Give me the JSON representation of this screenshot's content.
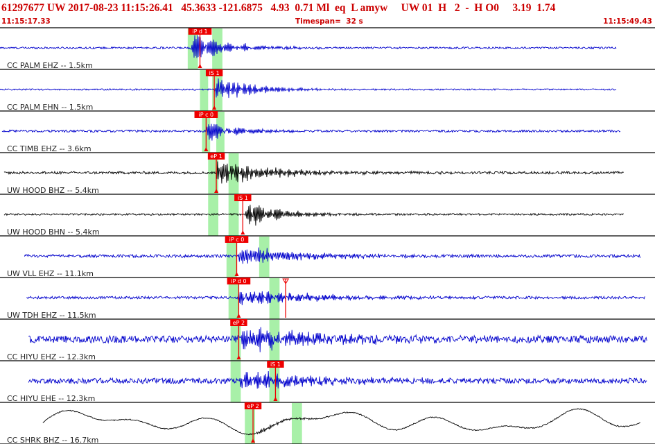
{
  "header": {
    "title": "61297677 UW 2017-08-23 11:15:26.41   45.3633 -121.6875   4.93  0.71 Ml  eq  L amyw     UW 01  H   2  -  H O0     3.19  1.74",
    "start_time": "11:15:17.33",
    "timespan": "Timespan=  32 s",
    "end_time": "11:15:49.43"
  },
  "colors": {
    "blue_trace": "#0000cc",
    "black_trace": "#000000",
    "pick_red": "#ee0000",
    "window_green": "#a8f0a8",
    "divider": "#000000"
  },
  "chart_data": {
    "type": "seismogram",
    "time_range_s": [
      0,
      32.1
    ],
    "traces": [
      {
        "label": "CC PALM EHZ -- 1.5km",
        "color": "blue",
        "onset_s": 9.3,
        "trace_start_s": 0,
        "trace_end_s": 30.2,
        "amplitude": 0.9,
        "decay": 0.18,
        "noise": 0.05,
        "freq": 3.2,
        "windows": [
          [
            9.2,
            9.7
          ],
          [
            10.4,
            10.9
          ]
        ],
        "picks": [
          {
            "label": "iP d 1",
            "t": 9.8
          }
        ]
      },
      {
        "label": "CC PALM EHN -- 1.5km",
        "color": "blue",
        "onset_s": 10.5,
        "trace_start_s": 0,
        "trace_end_s": 30.2,
        "amplitude": 0.9,
        "decay": 0.2,
        "noise": 0.04,
        "freq": 3.5,
        "windows": [
          [
            9.8,
            10.2
          ],
          [
            10.4,
            10.9
          ]
        ],
        "picks": [
          {
            "label": "iS 1",
            "t": 10.5
          }
        ]
      },
      {
        "label": "CC TIMB EHZ -- 3.6km",
        "color": "blue",
        "onset_s": 10.0,
        "trace_start_s": 0.1,
        "trace_end_s": 30.4,
        "amplitude": 0.65,
        "decay": 0.2,
        "noise": 0.06,
        "freq": 3.0,
        "windows": [
          [
            9.9,
            10.3
          ],
          [
            10.6,
            11.0
          ]
        ],
        "picks": [
          {
            "label": "iP c 0",
            "t": 10.1
          }
        ]
      },
      {
        "label": "UW HOOD BHZ -- 5.4km",
        "color": "black",
        "onset_s": 10.5,
        "trace_start_s": 0.2,
        "trace_end_s": 30.6,
        "amplitude": 0.75,
        "decay": 0.12,
        "noise": 0.07,
        "freq": 2.6,
        "windows": [
          [
            10.2,
            10.7
          ],
          [
            11.2,
            11.7
          ]
        ],
        "picks": [
          {
            "label": "eP 1",
            "t": 10.6
          }
        ]
      },
      {
        "label": "UW HOOD BHN -- 5.4km",
        "color": "black",
        "onset_s": 11.9,
        "trace_start_s": 0.2,
        "trace_end_s": 30.6,
        "amplitude": 0.85,
        "decay": 0.2,
        "noise": 0.05,
        "freq": 2.8,
        "windows": [
          [
            10.2,
            10.7
          ],
          [
            11.2,
            11.7
          ]
        ],
        "picks": [
          {
            "label": "iS 1",
            "t": 11.9
          }
        ]
      },
      {
        "label": "UW VLL EHZ -- 11.1km",
        "color": "blue",
        "onset_s": 11.6,
        "trace_start_s": 1.2,
        "trace_end_s": 31.4,
        "amplitude": 0.55,
        "decay": 0.1,
        "noise": 0.08,
        "freq": 2.5,
        "windows": [
          [
            11.1,
            11.6
          ],
          [
            12.7,
            13.2
          ]
        ],
        "picks": [
          {
            "label": "iP c 0",
            "t": 11.6
          }
        ]
      },
      {
        "label": "UW TDH EHZ -- 11.5km",
        "color": "blue",
        "onset_s": 11.6,
        "trace_start_s": 1.3,
        "trace_end_s": 31.6,
        "amplitude": 0.6,
        "decay": 0.1,
        "noise": 0.07,
        "freq": 2.8,
        "windows": [
          [
            11.2,
            11.7
          ],
          [
            13.2,
            13.7
          ]
        ],
        "picks": [
          {
            "label": "iP d 0",
            "t": 11.7
          },
          {
            "label": "",
            "t": 14.0
          }
        ]
      },
      {
        "label": "CC HIYU EHZ -- 12.3km",
        "color": "blue",
        "onset_s": 11.7,
        "trace_start_s": 1.4,
        "trace_end_s": 31.7,
        "amplitude": 0.7,
        "decay": 0.08,
        "noise": 0.2,
        "freq": 3.3,
        "windows": [
          [
            11.3,
            11.8
          ],
          [
            13.2,
            13.7
          ]
        ],
        "picks": [
          {
            "label": "eP 2",
            "t": 11.7
          }
        ]
      },
      {
        "label": "CC HIYU EHE -- 12.3km",
        "color": "blue",
        "onset_s": 11.7,
        "trace_start_s": 1.4,
        "trace_end_s": 31.7,
        "amplitude": 0.7,
        "decay": 0.1,
        "noise": 0.15,
        "freq": 3.3,
        "windows": [
          [
            11.3,
            11.8
          ],
          [
            13.2,
            13.7
          ]
        ],
        "picks": [
          {
            "label": "iS 1",
            "t": 13.5
          }
        ]
      },
      {
        "label": "CC SHRK BHZ -- 16.7km",
        "color": "black",
        "onset_s": 12.5,
        "trace_start_s": 2.1,
        "trace_end_s": 31.4,
        "amplitude": 0.15,
        "decay": 0.2,
        "noise": 0.03,
        "freq": 2.5,
        "long_period": true,
        "windows": [
          [
            12.0,
            12.5
          ],
          [
            14.3,
            14.8
          ]
        ],
        "picks": [
          {
            "label": "eP 2",
            "t": 12.4
          }
        ]
      }
    ]
  }
}
